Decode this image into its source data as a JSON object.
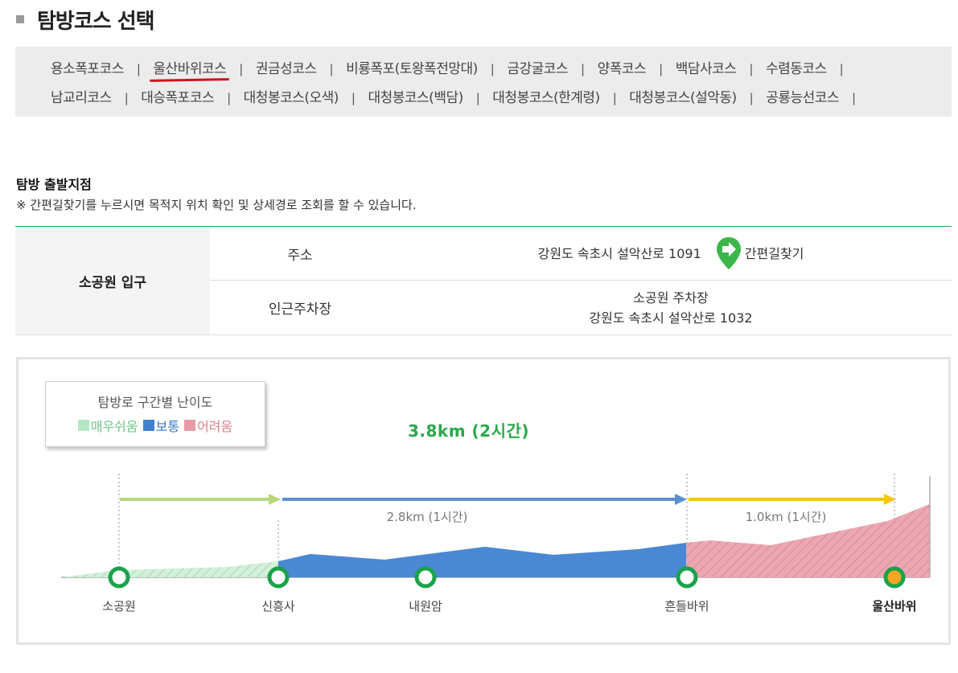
{
  "page": {
    "title": "탐방코스 선택"
  },
  "courses": {
    "row1": [
      {
        "label": "용소폭포코스"
      },
      {
        "label": "울산바위코스",
        "active": true
      },
      {
        "label": "권금성코스"
      },
      {
        "label": "비룡폭포(토왕폭전망대)"
      },
      {
        "label": "금강굴코스"
      },
      {
        "label": "양폭코스"
      },
      {
        "label": "백담사코스"
      },
      {
        "label": "수렴동코스"
      }
    ],
    "row2": [
      {
        "label": "남교리코스"
      },
      {
        "label": "대승폭포코스"
      },
      {
        "label": "대청봉코스(오색)"
      },
      {
        "label": "대청봉코스(백담)"
      },
      {
        "label": "대청봉코스(한계령)"
      },
      {
        "label": "대청봉코스(설악동)"
      },
      {
        "label": "공룡능선코스"
      }
    ],
    "separator": "|"
  },
  "start": {
    "title": "탐방 출발지점",
    "note": "※ 간편길찾기를 누르시면 목적지 위치 확인 및 상세경로 조회를 할 수 있습니다.",
    "place": "소공원 입구",
    "address_label": "주소",
    "address_value": "강원도 속초시 설악산로 1091",
    "route_button": "간편길찾기",
    "parking_label": "인근주차장",
    "parking_name": "소공원 주차장",
    "parking_address": "강원도 속초시 설악산로 1032"
  },
  "diagram": {
    "legend_title": "탐방로 구간별 난이도",
    "legend": [
      {
        "label": "매우쉬움",
        "color": "#b7e6c4"
      },
      {
        "label": "보통",
        "color": "#3f82d2"
      },
      {
        "label": "어려움",
        "color": "#e89aa6"
      }
    ],
    "total": "3.8km (2시간)",
    "segments": [
      {
        "label": "",
        "color": "#b9d77b"
      },
      {
        "label": "2.8km (1시간)",
        "color": "#5b8fd0"
      },
      {
        "label": "1.0km (1시간)",
        "color": "#f5c518"
      }
    ],
    "stops": [
      {
        "name": "소공원",
        "bold": false
      },
      {
        "name": "신흥사",
        "bold": false
      },
      {
        "name": "내원암",
        "bold": false
      },
      {
        "name": "흔들바위",
        "bold": false
      },
      {
        "name": "울산바위",
        "bold": true
      }
    ],
    "colors": {
      "node_ring": "#1aa34a",
      "final_node_fill": "#f5a623"
    }
  }
}
